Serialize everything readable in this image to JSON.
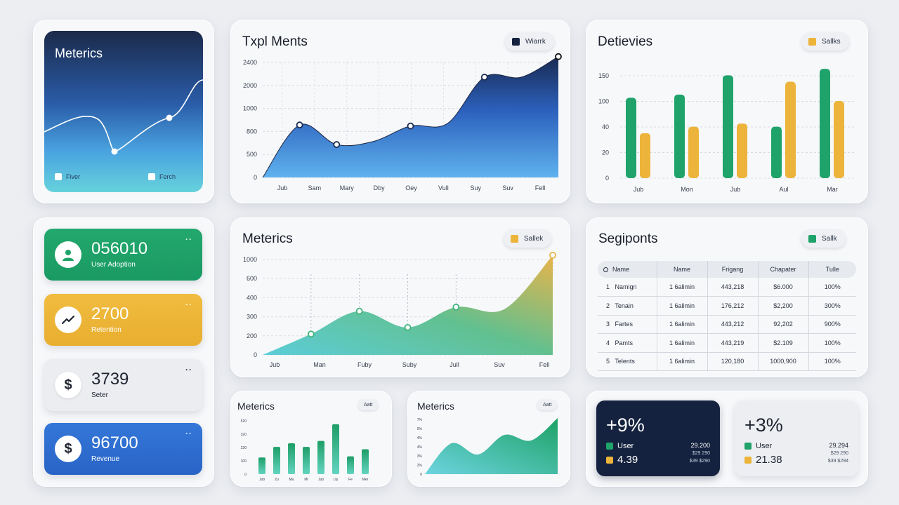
{
  "colors": {
    "green": "#1fa36b",
    "yellow": "#ecb43a",
    "navy": "#162340",
    "blue": "#2f6fd6",
    "teal": "#5fd0d8"
  },
  "hero": {
    "title": "Meterics",
    "legend": [
      "Fiver",
      "Ferch"
    ]
  },
  "chart1": {
    "title": "Txpl Ments",
    "legend": "Wiarrk",
    "chart_data": {
      "type": "area",
      "categories": [
        "Jub",
        "Sam",
        "Mary",
        "Dby",
        "Oey",
        "Vull",
        "Suy",
        "Suv",
        "Fell"
      ],
      "y_ticks": [
        "0",
        "500",
        "800",
        "1000",
        "2000",
        "2400"
      ],
      "series": [
        {
          "name": "Wiarrk",
          "values": [
            0,
            1020,
            640,
            700,
            1000,
            1050,
            1950,
            1950,
            2350
          ]
        }
      ]
    }
  },
  "chart2": {
    "title": "Detievies",
    "legend": "Sallks",
    "chart_data": {
      "type": "bar",
      "categories": [
        "Jub",
        "Mon",
        "Jub",
        "Aul",
        "Mar"
      ],
      "y_ticks": [
        "0",
        "20",
        "40",
        "100",
        "150"
      ],
      "series": [
        {
          "name": "green",
          "values": [
            125,
            130,
            160,
            80,
            170
          ]
        },
        {
          "name": "Sallks",
          "values": [
            70,
            80,
            85,
            150,
            120
          ]
        }
      ]
    }
  },
  "chart3": {
    "title": "Meterics",
    "legend": "Sallek",
    "chart_data": {
      "type": "area",
      "categories": [
        "Jub",
        "Man",
        "Fuby",
        "Suby",
        "Jull",
        "Suv",
        "Fell"
      ],
      "y_ticks": [
        "0",
        "200",
        "300",
        "400",
        "600",
        "1000"
      ],
      "series": [
        {
          "name": "Sallek",
          "values": [
            0,
            205,
            430,
            270,
            470,
            450,
            980
          ]
        }
      ]
    }
  },
  "stats": [
    {
      "value": "056010",
      "label": "User Adoption",
      "icon": "user-icon"
    },
    {
      "value": "2700",
      "label": "Retention",
      "icon": "trend-icon"
    },
    {
      "value": "3739",
      "label": "Seter",
      "icon": "dollar-icon"
    },
    {
      "value": "96700",
      "label": "Revenue",
      "icon": "dollar-icon"
    }
  ],
  "table": {
    "title": "Segiponts",
    "legend": "Sallk",
    "headers": [
      "Name",
      "Name",
      "Frigang",
      "Chapater",
      "Tulle"
    ],
    "rows": [
      [
        "1",
        "Namign",
        "1 6alimin",
        "443,218",
        "$6.000",
        "100%"
      ],
      [
        "2",
        "Tenain",
        "1 6alimin",
        "176,212",
        "$2,200",
        "300%"
      ],
      [
        "3",
        "Fartes",
        "1 6alimin",
        "443,212",
        "92,202",
        "900%"
      ],
      [
        "4",
        "Pamts",
        "1 6alimin",
        "443,219",
        "$2.109",
        "100%"
      ],
      [
        "5",
        "Telents",
        "1 6alimin",
        "120,180",
        "1000,900",
        "100%"
      ]
    ]
  },
  "mini1": {
    "title": "Meterics",
    "badge": "Aatt",
    "chart_data": {
      "type": "bar",
      "categories": [
        "Jub",
        "Zu",
        "Mu",
        "Mi",
        "Jub",
        "Lty",
        "Fe",
        "Mer"
      ],
      "y_ticks": [
        "0",
        "100",
        "220",
        "320",
        "520"
      ],
      "values": [
        140,
        230,
        260,
        230,
        280,
        420,
        150,
        210
      ]
    }
  },
  "mini2": {
    "title": "Meterics",
    "badge": "Aatt",
    "chart_data": {
      "type": "area",
      "y_ticks": [
        "0",
        "2%",
        "3%",
        "4%",
        "4%",
        "5%",
        "7%"
      ],
      "values": [
        0.0,
        0.55,
        0.35,
        0.7,
        0.6,
        1.0
      ]
    }
  },
  "summary": [
    {
      "big": "+9%",
      "row1": "User",
      "row2": "4.39",
      "r1": "29.200",
      "r2": "$29 290",
      "r3": "$39 $290"
    },
    {
      "big": "+3%",
      "row1": "User",
      "row2": "21.38",
      "r1": "29.294",
      "r2": "$29 290",
      "r3": "$39 $294"
    }
  ]
}
